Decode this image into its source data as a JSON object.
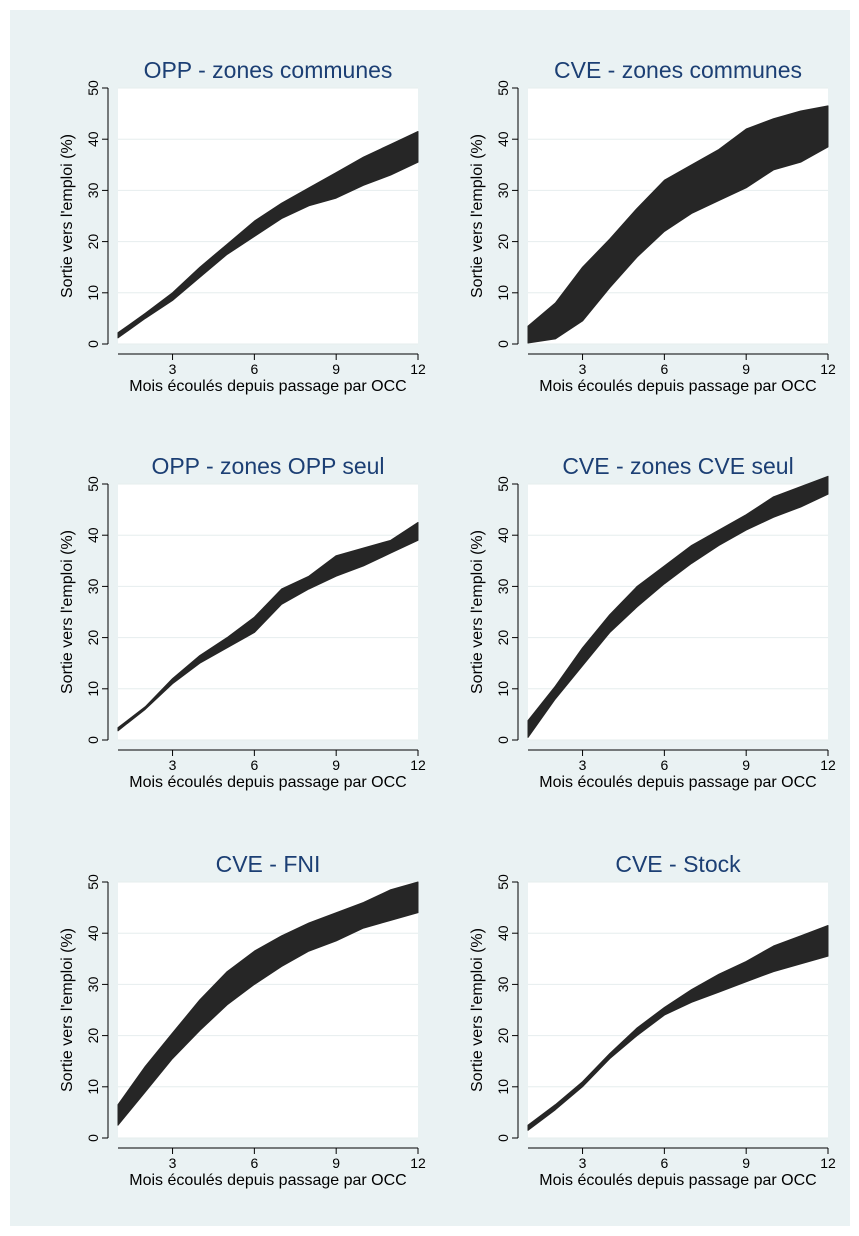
{
  "chart_data": [
    {
      "type": "area",
      "title": "OPP - zones communes",
      "xlabel": "Mois écoulés depuis passage par OCC",
      "ylabel": "Sortie vers l'emploi (%)",
      "xlim": [
        1,
        12
      ],
      "ylim": [
        0,
        50
      ],
      "xticks": [
        3,
        6,
        9,
        12
      ],
      "yticks": [
        0,
        10,
        20,
        30,
        40,
        50
      ],
      "grid": true,
      "series": [
        {
          "x": [
            1,
            2,
            3,
            4,
            5,
            6,
            7,
            8,
            9,
            10,
            11,
            12
          ],
          "lower": [
            1.2,
            5,
            8.5,
            13,
            17.5,
            21,
            24.5,
            27,
            28.5,
            31,
            33,
            35.5
          ],
          "upper": [
            2.2,
            6,
            10,
            15,
            19.5,
            24,
            27.5,
            30.5,
            33.5,
            36.5,
            39,
            41.5
          ]
        }
      ]
    },
    {
      "type": "area",
      "title": "CVE - zones communes",
      "xlabel": "Mois écoulés depuis passage par OCC",
      "ylabel": "Sortie vers l'emploi (%)",
      "xlim": [
        1,
        12
      ],
      "ylim": [
        0,
        50
      ],
      "xticks": [
        3,
        6,
        9,
        12
      ],
      "yticks": [
        0,
        10,
        20,
        30,
        40,
        50
      ],
      "grid": true,
      "series": [
        {
          "x": [
            1,
            2,
            3,
            4,
            5,
            6,
            7,
            8,
            9,
            10,
            11,
            12
          ],
          "lower": [
            0.2,
            1,
            4.5,
            11,
            17,
            22,
            25.5,
            28,
            30.5,
            34,
            35.5,
            38.5
          ],
          "upper": [
            3.5,
            8,
            15,
            20.5,
            26.5,
            32,
            35,
            38,
            42,
            44,
            45.5,
            46.5
          ]
        }
      ]
    },
    {
      "type": "area",
      "title": "OPP - zones OPP seul",
      "xlabel": "Mois écoulés depuis passage par OCC",
      "ylabel": "Sortie vers l'emploi (%)",
      "xlim": [
        1,
        12
      ],
      "ylim": [
        0,
        50
      ],
      "xticks": [
        3,
        6,
        9,
        12
      ],
      "yticks": [
        0,
        10,
        20,
        30,
        40,
        50
      ],
      "grid": true,
      "series": [
        {
          "x": [
            1,
            2,
            3,
            4,
            5,
            6,
            7,
            8,
            9,
            10,
            11,
            12
          ],
          "lower": [
            1.8,
            6,
            11,
            15,
            18,
            21,
            26.5,
            29.5,
            32,
            34,
            36.5,
            39
          ],
          "upper": [
            2.4,
            6.5,
            12,
            16.5,
            20,
            24,
            29.5,
            32,
            36,
            37.5,
            39,
            42.5
          ]
        }
      ]
    },
    {
      "type": "area",
      "title": "CVE - zones CVE seul",
      "xlabel": "Mois écoulés depuis passage par OCC",
      "ylabel": "Sortie vers l'emploi (%)",
      "xlim": [
        1,
        12
      ],
      "ylim": [
        0,
        50
      ],
      "xticks": [
        3,
        6,
        9,
        12
      ],
      "yticks": [
        0,
        10,
        20,
        30,
        40,
        50
      ],
      "grid": true,
      "series": [
        {
          "x": [
            1,
            2,
            3,
            4,
            5,
            6,
            7,
            8,
            9,
            10,
            11,
            12
          ],
          "lower": [
            0.5,
            8,
            14.5,
            21,
            26,
            30.5,
            34.5,
            38,
            41,
            43.5,
            45.5,
            48
          ],
          "upper": [
            3.8,
            10.5,
            18,
            24.5,
            30,
            34,
            38,
            41,
            44,
            47.5,
            49.5,
            51.5
          ]
        }
      ]
    },
    {
      "type": "area",
      "title": "CVE - FNI",
      "xlabel": "Mois écoulés depuis passage par OCC",
      "ylabel": "Sortie vers l'emploi (%)",
      "xlim": [
        1,
        12
      ],
      "ylim": [
        0,
        50
      ],
      "xticks": [
        3,
        6,
        9,
        12
      ],
      "yticks": [
        0,
        10,
        20,
        30,
        40,
        50
      ],
      "grid": true,
      "series": [
        {
          "x": [
            1,
            2,
            3,
            4,
            5,
            6,
            7,
            8,
            9,
            10,
            11,
            12
          ],
          "lower": [
            2.5,
            9,
            15.5,
            21,
            26,
            30,
            33.5,
            36.5,
            38.5,
            41,
            42.5,
            44
          ],
          "upper": [
            6.5,
            14,
            20.5,
            27,
            32.5,
            36.5,
            39.5,
            42,
            44,
            46,
            48.5,
            50
          ]
        }
      ]
    },
    {
      "type": "area",
      "title": "CVE - Stock",
      "xlabel": "Mois écoulés depuis passage par OCC",
      "ylabel": "Sortie vers l'emploi (%)",
      "xlim": [
        1,
        12
      ],
      "ylim": [
        0,
        50
      ],
      "xticks": [
        3,
        6,
        9,
        12
      ],
      "yticks": [
        0,
        10,
        20,
        30,
        40,
        50
      ],
      "grid": true,
      "series": [
        {
          "x": [
            1,
            2,
            3,
            4,
            5,
            6,
            7,
            8,
            9,
            10,
            11,
            12
          ],
          "lower": [
            1.5,
            5.5,
            10,
            15.5,
            20,
            24,
            26.5,
            28.5,
            30.5,
            32.5,
            34,
            35.5
          ],
          "upper": [
            2.5,
            6.5,
            11,
            16.5,
            21.5,
            25.5,
            29,
            32,
            34.5,
            37.5,
            39.5,
            41.5
          ]
        }
      ]
    }
  ],
  "colors": {
    "band": "#262626",
    "figure_bg": "#eaf2f3",
    "plot_bg": "#ffffff",
    "title": "#1c3f74",
    "grid": "#e6edee"
  }
}
